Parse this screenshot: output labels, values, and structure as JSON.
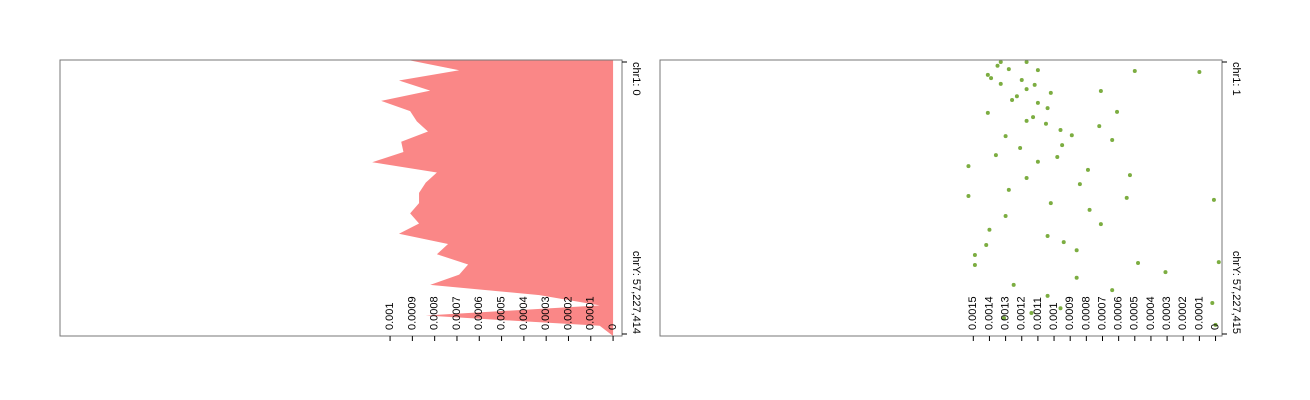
{
  "chart_data": [
    {
      "type": "area",
      "color": "#fa8787",
      "values": [
        0.00092,
        0.00069,
        0.00096,
        0.00082,
        0.00104,
        0.00091,
        0.00088,
        0.00083,
        0.00095,
        0.00094,
        0.00108,
        0.00079,
        0.00084,
        0.00087,
        0.00087,
        0.00091,
        0.00087,
        0.00096,
        0.00074,
        0.00079,
        0.00065,
        0.00069,
        0.00082,
        0.00033,
        6e-05,
        0.00084,
        6e-05,
        0
      ],
      "xlim": [
        0.00248,
        -4e-05
      ],
      "xticks": [
        0.001,
        0.0009,
        0.0008,
        0.0007,
        0.0006,
        0.0005,
        0.0004,
        0.0003,
        0.0002,
        0.0001,
        0
      ],
      "ylim": [
        0,
        57227414
      ],
      "yticks": [
        {
          "value": 0,
          "label": "chr1: 0"
        },
        {
          "value": 57227414,
          "label": "chrY: 57,227,414"
        }
      ]
    },
    {
      "type": "scatter",
      "color": "#7cad41",
      "y": [
        0,
        0,
        800000,
        1500000,
        1700000,
        1900000,
        2100000,
        2700000,
        3400000,
        3800000,
        4600000,
        4800000,
        5700000,
        6100000,
        6500000,
        7200000,
        8000000,
        8600000,
        9700000,
        10500000,
        10700000,
        11600000,
        12400000,
        13000000,
        13500000,
        14300000,
        15400000,
        15600000,
        16400000,
        17500000,
        18100000,
        19600000,
        20000000,
        21000000,
        21900000,
        22700000,
        23800000,
        24400000,
        25700000,
        26900000,
        28200000,
        28600000,
        29000000,
        29700000,
        31100000,
        32400000,
        34100000,
        35300000,
        36600000,
        37900000,
        38500000,
        39600000,
        40600000,
        42100000,
        42300000,
        42700000,
        44200000,
        45400000,
        46900000,
        48000000,
        49200000,
        50700000,
        51800000,
        52800000,
        53900000,
        55300000
      ],
      "values": [
        0.00133,
        0.00117,
        0.00135,
        0.00128,
        0.0011,
        0.0005,
        0.0001,
        0.00141,
        0.00139,
        0.0012,
        0.00133,
        0.00112,
        0.00117,
        0.00071,
        0.00102,
        0.00123,
        0.00126,
        0.0011,
        0.00104,
        0.00061,
        0.00141,
        0.00113,
        0.00117,
        0.00105,
        0.00072,
        0.00096,
        0.00089,
        0.0013,
        0.00064,
        0.00095,
        0.00121,
        0.00136,
        0.00098,
        0.0011,
        0.00153,
        0.00079,
        0.00053,
        0.00117,
        0.00084,
        0.00128,
        0.00153,
        0.00055,
        1e-05,
        0.00102,
        0.00078,
        0.0013,
        0.00071,
        0.0014,
        0.00104,
        0.00094,
        0.00142,
        0.00086,
        0.00149,
        -2e-05,
        0.00048,
        0.00149,
        0.00031,
        0.00086,
        0.00125,
        0.00064,
        0.00104,
        2e-05,
        0.00096,
        0.00114,
        0.00131,
        0
      ],
      "xlim": [
        0.00344,
        -4e-05
      ],
      "xticks": [
        0.0015,
        0.0014,
        0.0013,
        0.0012,
        0.0011,
        0.001,
        0.0009,
        0.0008,
        0.0007,
        0.0006,
        0.0005,
        0.0004,
        0.0003,
        0.0002,
        0.0001,
        0
      ],
      "ylim": [
        1,
        57227415
      ],
      "yticks": [
        {
          "value": 1,
          "label": "chr1: 1"
        },
        {
          "value": 57227415,
          "label": "chrY: 57,227,415"
        }
      ]
    }
  ]
}
